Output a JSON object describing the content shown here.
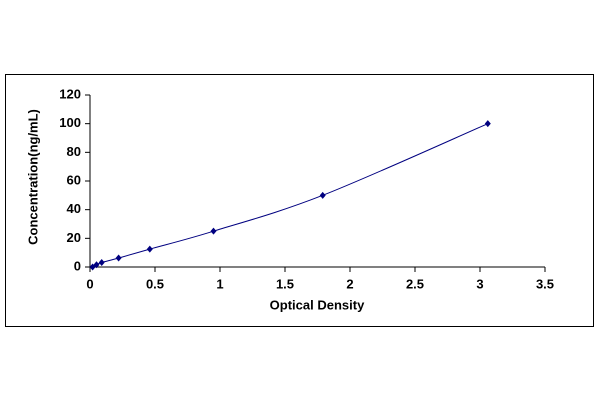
{
  "chart_data": {
    "type": "scatter",
    "x_label": "Optical Density",
    "y_label": "Concentration(ng/mL)",
    "x": [
      0.02,
      0.05,
      0.09,
      0.22,
      0.46,
      0.95,
      1.79,
      3.06
    ],
    "values": [
      0,
      1.56,
      3.12,
      6.25,
      12.5,
      25,
      50,
      100
    ],
    "color": "#000080",
    "line_color": "#000080",
    "xlim": [
      0,
      3.5
    ],
    "xticks": [
      0,
      0.5,
      1,
      1.5,
      2,
      2.5,
      3,
      3.5
    ],
    "ylim": [
      0,
      120
    ],
    "yticks": [
      0,
      20,
      40,
      60,
      80,
      100,
      120
    ],
    "grid": false
  }
}
